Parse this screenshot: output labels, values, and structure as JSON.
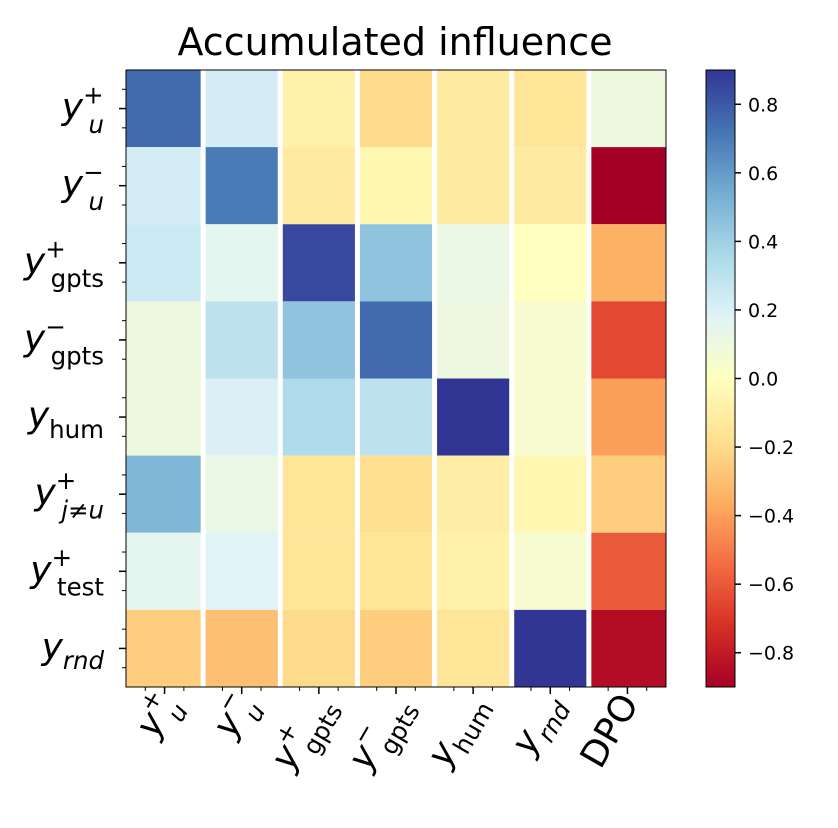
{
  "chart_data": {
    "type": "heatmap",
    "title": "Accumulated influence",
    "rows": [
      {
        "base": "y",
        "sub": "u",
        "sup": "+",
        "sub_italic": true
      },
      {
        "base": "y",
        "sub": "u",
        "sup": "−",
        "sub_italic": true
      },
      {
        "base": "y",
        "sub": "gpts",
        "sup": "+",
        "sub_italic": false
      },
      {
        "base": "y",
        "sub": "gpts",
        "sup": "−",
        "sub_italic": false
      },
      {
        "base": "y",
        "sub": "hum",
        "sup": "",
        "sub_italic": false
      },
      {
        "base": "y",
        "sub": "j≠u",
        "sup": "+",
        "sub_italic": true
      },
      {
        "base": "y",
        "sub": "test",
        "sup": "+",
        "sub_italic": false
      },
      {
        "base": "y",
        "sub": "rnd",
        "sup": "",
        "sub_italic": true
      }
    ],
    "columns": [
      {
        "base": "y",
        "sub": "u",
        "sup": "+",
        "sub_italic": true
      },
      {
        "base": "y",
        "sub": "u",
        "sup": "−",
        "sub_italic": true
      },
      {
        "base": "y",
        "sub": "gpts",
        "sup": "+",
        "sub_italic": false
      },
      {
        "base": "y",
        "sub": "gpts",
        "sup": "−",
        "sub_italic": false
      },
      {
        "base": "y",
        "sub": "hum",
        "sup": "",
        "sub_italic": false
      },
      {
        "base": "y",
        "sub": "rnd",
        "sup": "",
        "sub_italic": true
      },
      {
        "base": "DPO",
        "sub": "",
        "sup": "",
        "sub_italic": false
      }
    ],
    "values": [
      [
        0.75,
        0.22,
        -0.08,
        -0.2,
        -0.12,
        -0.15,
        0.1
      ],
      [
        0.22,
        0.7,
        -0.12,
        -0.05,
        -0.12,
        -0.12,
        -0.9
      ],
      [
        0.25,
        0.15,
        0.85,
        0.45,
        0.12,
        0.0,
        -0.35
      ],
      [
        0.1,
        0.3,
        0.45,
        0.75,
        0.1,
        0.05,
        -0.65
      ],
      [
        0.1,
        0.2,
        0.35,
        0.3,
        0.9,
        0.05,
        -0.4
      ],
      [
        0.5,
        0.12,
        -0.15,
        -0.18,
        -0.1,
        -0.05,
        -0.25
      ],
      [
        0.15,
        0.18,
        -0.15,
        -0.15,
        -0.08,
        0.05,
        -0.6
      ],
      [
        -0.25,
        -0.3,
        -0.2,
        -0.25,
        -0.15,
        0.95,
        -0.85
      ]
    ],
    "vmin": -0.9,
    "vmax": 0.9,
    "colormap": "RdYlBu",
    "colorbar": {
      "ticks": [
        0.8,
        0.6,
        0.4,
        0.2,
        0.0,
        -0.2,
        -0.4,
        -0.6,
        -0.8
      ],
      "tick_labels": [
        "0.8",
        "0.6",
        "0.4",
        "0.2",
        "0.0",
        "−0.2",
        "−0.4",
        "−0.6",
        "−0.8"
      ]
    },
    "grid": false,
    "cell_separator_color": "#ffffff"
  }
}
